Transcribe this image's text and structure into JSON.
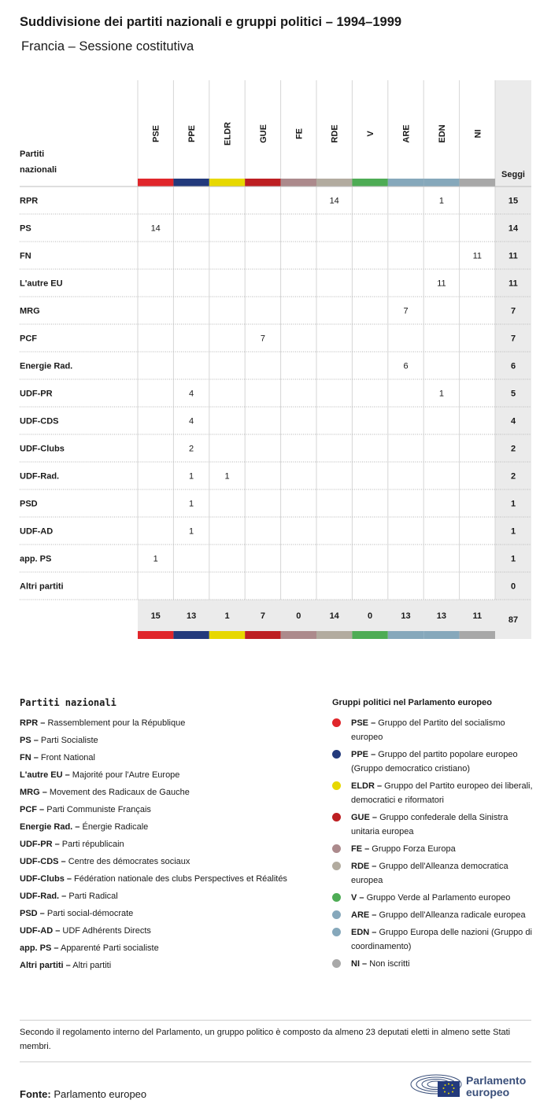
{
  "title": "Suddivisione dei partiti nazionali e gruppi politici – 1994–1999",
  "subtitle": "Francia – Sessione costitutiva",
  "chart_data": {
    "type": "table",
    "row_header": "Partiti nazionali",
    "total_header": "Seggi",
    "groups": [
      {
        "code": "PSE",
        "color": "#e0262b"
      },
      {
        "code": "PPE",
        "color": "#233a7c"
      },
      {
        "code": "ELDR",
        "color": "#e7d800"
      },
      {
        "code": "GUE",
        "color": "#bd1f22"
      },
      {
        "code": "FE",
        "color": "#ac8a8c"
      },
      {
        "code": "RDE",
        "color": "#b2ab9f"
      },
      {
        "code": "V",
        "color": "#4eac55"
      },
      {
        "code": "ARE",
        "color": "#86a8bb"
      },
      {
        "code": "EDN",
        "color": "#86a8bb"
      },
      {
        "code": "NI",
        "color": "#a8a8a8"
      }
    ],
    "rows": [
      {
        "party": "RPR",
        "values": [
          null,
          null,
          null,
          null,
          null,
          14,
          null,
          null,
          1,
          null
        ],
        "total": 15
      },
      {
        "party": "PS",
        "values": [
          14,
          null,
          null,
          null,
          null,
          null,
          null,
          null,
          null,
          null
        ],
        "total": 14
      },
      {
        "party": "FN",
        "values": [
          null,
          null,
          null,
          null,
          null,
          null,
          null,
          null,
          null,
          11
        ],
        "total": 11
      },
      {
        "party": "L'autre EU",
        "values": [
          null,
          null,
          null,
          null,
          null,
          null,
          null,
          null,
          11,
          null
        ],
        "total": 11
      },
      {
        "party": "MRG",
        "values": [
          null,
          null,
          null,
          null,
          null,
          null,
          null,
          7,
          null,
          null
        ],
        "total": 7
      },
      {
        "party": "PCF",
        "values": [
          null,
          null,
          null,
          7,
          null,
          null,
          null,
          null,
          null,
          null
        ],
        "total": 7
      },
      {
        "party": "Energie Rad.",
        "values": [
          null,
          null,
          null,
          null,
          null,
          null,
          null,
          6,
          null,
          null
        ],
        "total": 6
      },
      {
        "party": "UDF-PR",
        "values": [
          null,
          4,
          null,
          null,
          null,
          null,
          null,
          null,
          1,
          null
        ],
        "total": 5
      },
      {
        "party": "UDF-CDS",
        "values": [
          null,
          4,
          null,
          null,
          null,
          null,
          null,
          null,
          null,
          null
        ],
        "total": 4
      },
      {
        "party": "UDF-Clubs",
        "values": [
          null,
          2,
          null,
          null,
          null,
          null,
          null,
          null,
          null,
          null
        ],
        "total": 2
      },
      {
        "party": "UDF-Rad.",
        "values": [
          null,
          1,
          1,
          null,
          null,
          null,
          null,
          null,
          null,
          null
        ],
        "total": 2
      },
      {
        "party": "PSD",
        "values": [
          null,
          1,
          null,
          null,
          null,
          null,
          null,
          null,
          null,
          null
        ],
        "total": 1
      },
      {
        "party": "UDF-AD",
        "values": [
          null,
          1,
          null,
          null,
          null,
          null,
          null,
          null,
          null,
          null
        ],
        "total": 1
      },
      {
        "party": "app. PS",
        "values": [
          1,
          null,
          null,
          null,
          null,
          null,
          null,
          null,
          null,
          null
        ],
        "total": 1
      },
      {
        "party": "Altri partiti",
        "values": [
          null,
          null,
          null,
          null,
          null,
          null,
          null,
          null,
          null,
          null
        ],
        "total": 0
      }
    ],
    "group_totals": [
      15,
      13,
      1,
      7,
      0,
      14,
      0,
      13,
      13,
      11
    ],
    "grand_total": 87
  },
  "legend_parties": {
    "heading": "Partiti nazionali",
    "items": [
      {
        "abbr": "RPR –",
        "name": "Rassemblement pour la République"
      },
      {
        "abbr": "PS –",
        "name": "Parti Socialiste"
      },
      {
        "abbr": "FN –",
        "name": "Front National"
      },
      {
        "abbr": "L'autre EU –",
        "name": "Majorité pour l'Autre Europe"
      },
      {
        "abbr": "MRG –",
        "name": "Movement des Radicaux de Gauche"
      },
      {
        "abbr": "PCF –",
        "name": "Parti Communiste Français"
      },
      {
        "abbr": "Energie Rad. –",
        "name": "Énergie Radicale"
      },
      {
        "abbr": "UDF-PR –",
        "name": "Parti républicain"
      },
      {
        "abbr": "UDF-CDS –",
        "name": "Centre des démocrates sociaux"
      },
      {
        "abbr": "UDF-Clubs –",
        "name": "Fédération nationale des clubs Perspectives et Réalités"
      },
      {
        "abbr": "UDF-Rad. –",
        "name": "Parti Radical"
      },
      {
        "abbr": "PSD –",
        "name": "Parti social-démocrate"
      },
      {
        "abbr": "UDF-AD –",
        "name": "UDF Adhérents Directs"
      },
      {
        "abbr": "app. PS –",
        "name": "Apparenté Parti socialiste"
      },
      {
        "abbr": "Altri partiti –",
        "name": "Altri partiti"
      }
    ]
  },
  "legend_groups": {
    "heading": "Gruppi politici nel Parlamento europeo",
    "items": [
      {
        "abbr": "PSE –",
        "name": "Gruppo del Partito del socialismo europeo",
        "color": "#e0262b"
      },
      {
        "abbr": "PPE –",
        "name": "Gruppo del partito popolare europeo (Gruppo democratico cristiano)",
        "color": "#233a7c"
      },
      {
        "abbr": "ELDR –",
        "name": "Gruppo del Partito europeo dei liberali, democratici e riformatori",
        "color": "#e7d800"
      },
      {
        "abbr": "GUE –",
        "name": "Gruppo confederale della Sinistra unitaria europea",
        "color": "#bd1f22"
      },
      {
        "abbr": "FE –",
        "name": "Gruppo Forza Europa",
        "color": "#ac8a8c"
      },
      {
        "abbr": "RDE –",
        "name": "Gruppo dell'Alleanza democratica europea",
        "color": "#b2ab9f"
      },
      {
        "abbr": "V –",
        "name": "Gruppo Verde al Parlamento europeo",
        "color": "#4eac55"
      },
      {
        "abbr": "ARE –",
        "name": "Gruppo dell'Alleanza radicale europea",
        "color": "#86a8bb"
      },
      {
        "abbr": "EDN –",
        "name": "Gruppo Europa delle nazioni (Gruppo di coordinamento)",
        "color": "#86a8bb"
      },
      {
        "abbr": "NI –",
        "name": "Non iscritti",
        "color": "#a8a8a8"
      }
    ]
  },
  "footnote": "Secondo il regolamento interno del Parlamento, un gruppo politico è composto da almeno 23 deputati eletti in almeno sette Stati membri.",
  "source": {
    "label": "Fonte:",
    "value": "Parlamento europeo"
  },
  "logo": {
    "line1": "Parlamento",
    "line2": "europeo"
  }
}
